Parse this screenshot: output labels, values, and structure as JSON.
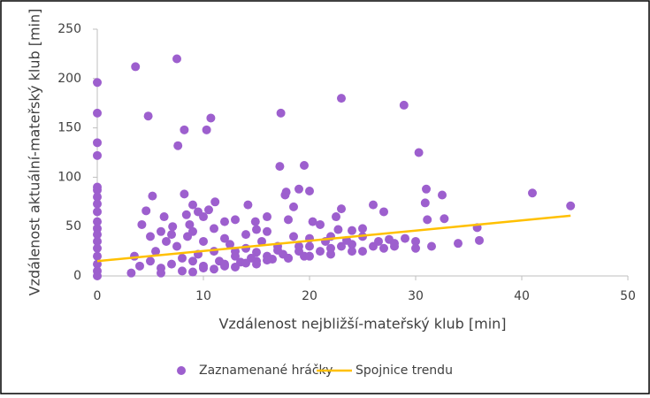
{
  "chart_data": {
    "type": "scatter",
    "xlabel": "Vzdálenost nejbližší-mateřský klub [min]",
    "ylabel": "Vzdálenost aktuální-mateřský klub [min]",
    "xlim": [
      0,
      50
    ],
    "xticks": [
      0,
      10,
      20,
      30,
      40,
      50
    ],
    "ylim": [
      0,
      250
    ],
    "yticks": [
      0,
      50,
      100,
      150,
      200,
      250
    ],
    "legend": "bottom",
    "series": [
      {
        "name": "Zaznamenané hráčky",
        "color": "#9d5fce",
        "type": "scatter",
        "x": [
          0,
          0,
          0,
          0,
          0,
          0,
          0,
          0,
          0,
          0,
          0,
          0,
          0,
          0,
          0,
          0,
          0,
          0,
          3.6,
          7.5,
          4.8,
          10.7,
          8.2,
          10.3,
          7.6,
          17.3,
          23,
          28.9,
          30.3,
          17.2,
          19.5,
          19,
          17.8,
          17.7,
          20,
          22.5,
          23,
          22.7,
          31,
          32.5,
          41,
          44.6,
          30.9,
          31.1,
          32.7,
          35.8,
          36,
          34,
          31.5,
          26,
          27,
          25,
          29,
          30,
          27.5,
          4.2,
          4.6,
          5.2,
          6,
          6.3,
          7.1,
          8.2,
          8.4,
          8.7,
          9,
          9.5,
          10,
          10.5,
          11.1,
          12,
          13,
          14.2,
          14.9,
          15,
          16,
          18,
          18.5,
          20.3,
          21,
          24,
          25,
          26.5,
          28,
          30,
          3.5,
          3.2,
          4,
          5,
          5.5,
          6,
          7,
          7.5,
          8,
          9,
          9.5,
          10,
          11,
          11.5,
          12,
          12.5,
          13,
          13.5,
          14,
          14.5,
          15,
          15.5,
          16,
          16.5,
          17,
          17.5,
          18,
          18.5,
          19,
          19.5,
          20,
          21,
          21.5,
          22,
          23,
          24,
          25,
          26,
          27,
          28,
          8.5,
          10,
          12,
          14,
          16,
          6.5,
          5,
          7,
          9,
          11,
          13,
          15,
          17,
          19,
          20,
          22,
          23.5,
          6,
          8,
          10,
          12,
          14,
          16,
          18,
          20,
          22,
          24,
          9,
          11,
          13,
          15
        ],
        "values": [
          196,
          165,
          135,
          122,
          90,
          87,
          80,
          73,
          65,
          55,
          48,
          42,
          35,
          28,
          20,
          12,
          5,
          0,
          212,
          220,
          162,
          160,
          148,
          148,
          132,
          165,
          180,
          173,
          125,
          111,
          112,
          88,
          85,
          82,
          86,
          60,
          68,
          47,
          88,
          82,
          84,
          71,
          74,
          57,
          58,
          49,
          36,
          33,
          30,
          72,
          65,
          48,
          38,
          35,
          37,
          52,
          66,
          81,
          45,
          60,
          50,
          83,
          62,
          52,
          72,
          65,
          60,
          67,
          75,
          55,
          57,
          72,
          55,
          47,
          60,
          57,
          70,
          55,
          52,
          46,
          40,
          35,
          30,
          28,
          20,
          3,
          10,
          15,
          25,
          8,
          12,
          30,
          18,
          15,
          22,
          10,
          25,
          15,
          12,
          32,
          20,
          14,
          28,
          18,
          15,
          35,
          20,
          17,
          30,
          22,
          18,
          40,
          25,
          20,
          30,
          25,
          35,
          28,
          30,
          32,
          25,
          30,
          28,
          33,
          40,
          35,
          38,
          42,
          45,
          35,
          40,
          42,
          45,
          48,
          25,
          24,
          26,
          30,
          38,
          40,
          36,
          3,
          5,
          8,
          10,
          13,
          16,
          18,
          20,
          22,
          25,
          4,
          7,
          9,
          12
        ]
      },
      {
        "name": "Spojnice trendu",
        "color": "#ffc000",
        "type": "line",
        "x": [
          0,
          44.6
        ],
        "values": [
          15,
          61
        ]
      }
    ]
  }
}
